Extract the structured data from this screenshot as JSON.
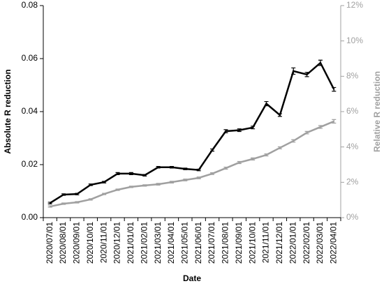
{
  "chart_data": {
    "type": "line",
    "x_label": "Date",
    "y_label": "Absolute R reduction",
    "y2_label": "Relative R reduction",
    "categories": [
      "2020/07/01",
      "2020/08/01",
      "2020/09/01",
      "2020/10/01",
      "2020/11/01",
      "2020/12/01",
      "2021/01/01",
      "2021/02/01",
      "2021/03/01",
      "2021/04/01",
      "2021/05/01",
      "2021/06/01",
      "2021/07/01",
      "2021/08/01",
      "2021/09/01",
      "2021/10/01",
      "2021/11/01",
      "2021/12/01",
      "2022/01/01",
      "2022/02/01",
      "2022/03/01",
      "2022/04/01"
    ],
    "series": [
      {
        "color": "#000000",
        "values": [
          0.0055,
          0.0087,
          0.0089,
          0.0124,
          0.0134,
          0.0166,
          0.0166,
          0.016,
          0.019,
          0.019,
          0.0184,
          0.018,
          0.0255,
          0.0326,
          0.033,
          0.034,
          0.043,
          0.0387,
          0.0553,
          0.054,
          0.0584,
          0.0484
        ],
        "errors": [
          0.0003,
          0.0003,
          0.0003,
          0.0003,
          0.0003,
          0.0004,
          0.0004,
          0.0003,
          0.0003,
          0.0003,
          0.0003,
          0.0003,
          0.0004,
          0.0006,
          0.0005,
          0.0005,
          0.0008,
          0.0005,
          0.0012,
          0.0008,
          0.001,
          0.0007
        ]
      },
      {
        "color": "#a0a0a0",
        "axis": "y2",
        "values": [
          0.63,
          0.79,
          0.87,
          1.03,
          1.34,
          1.58,
          1.74,
          1.82,
          1.89,
          2.01,
          2.13,
          2.25,
          2.49,
          2.8,
          3.12,
          3.32,
          3.55,
          3.95,
          4.34,
          4.81,
          5.13,
          5.45
        ],
        "errors": [
          0.04,
          0.04,
          0.04,
          0.04,
          0.04,
          0.04,
          0.04,
          0.04,
          0.05,
          0.05,
          0.05,
          0.05,
          0.05,
          0.06,
          0.06,
          0.06,
          0.06,
          0.06,
          0.07,
          0.07,
          0.08,
          0.1
        ]
      }
    ],
    "ylim": [
      0,
      0.08
    ],
    "yticks": [
      {
        "value": 0,
        "label": "0.00"
      },
      {
        "value": 0.02,
        "label": "0.02"
      },
      {
        "value": 0.04,
        "label": "0.04"
      },
      {
        "value": 0.06,
        "label": "0.06"
      },
      {
        "value": 0.08,
        "label": "0.08"
      }
    ],
    "y2lim": [
      0,
      12
    ],
    "y2ticks": [
      {
        "value": 0,
        "label": "0%"
      },
      {
        "value": 2,
        "label": "2%"
      },
      {
        "value": 4,
        "label": "4%"
      },
      {
        "value": 6,
        "label": "6%"
      },
      {
        "value": 8,
        "label": "8%"
      },
      {
        "value": 10,
        "label": "10%"
      },
      {
        "value": 12,
        "label": "12%"
      }
    ],
    "grid": false
  }
}
